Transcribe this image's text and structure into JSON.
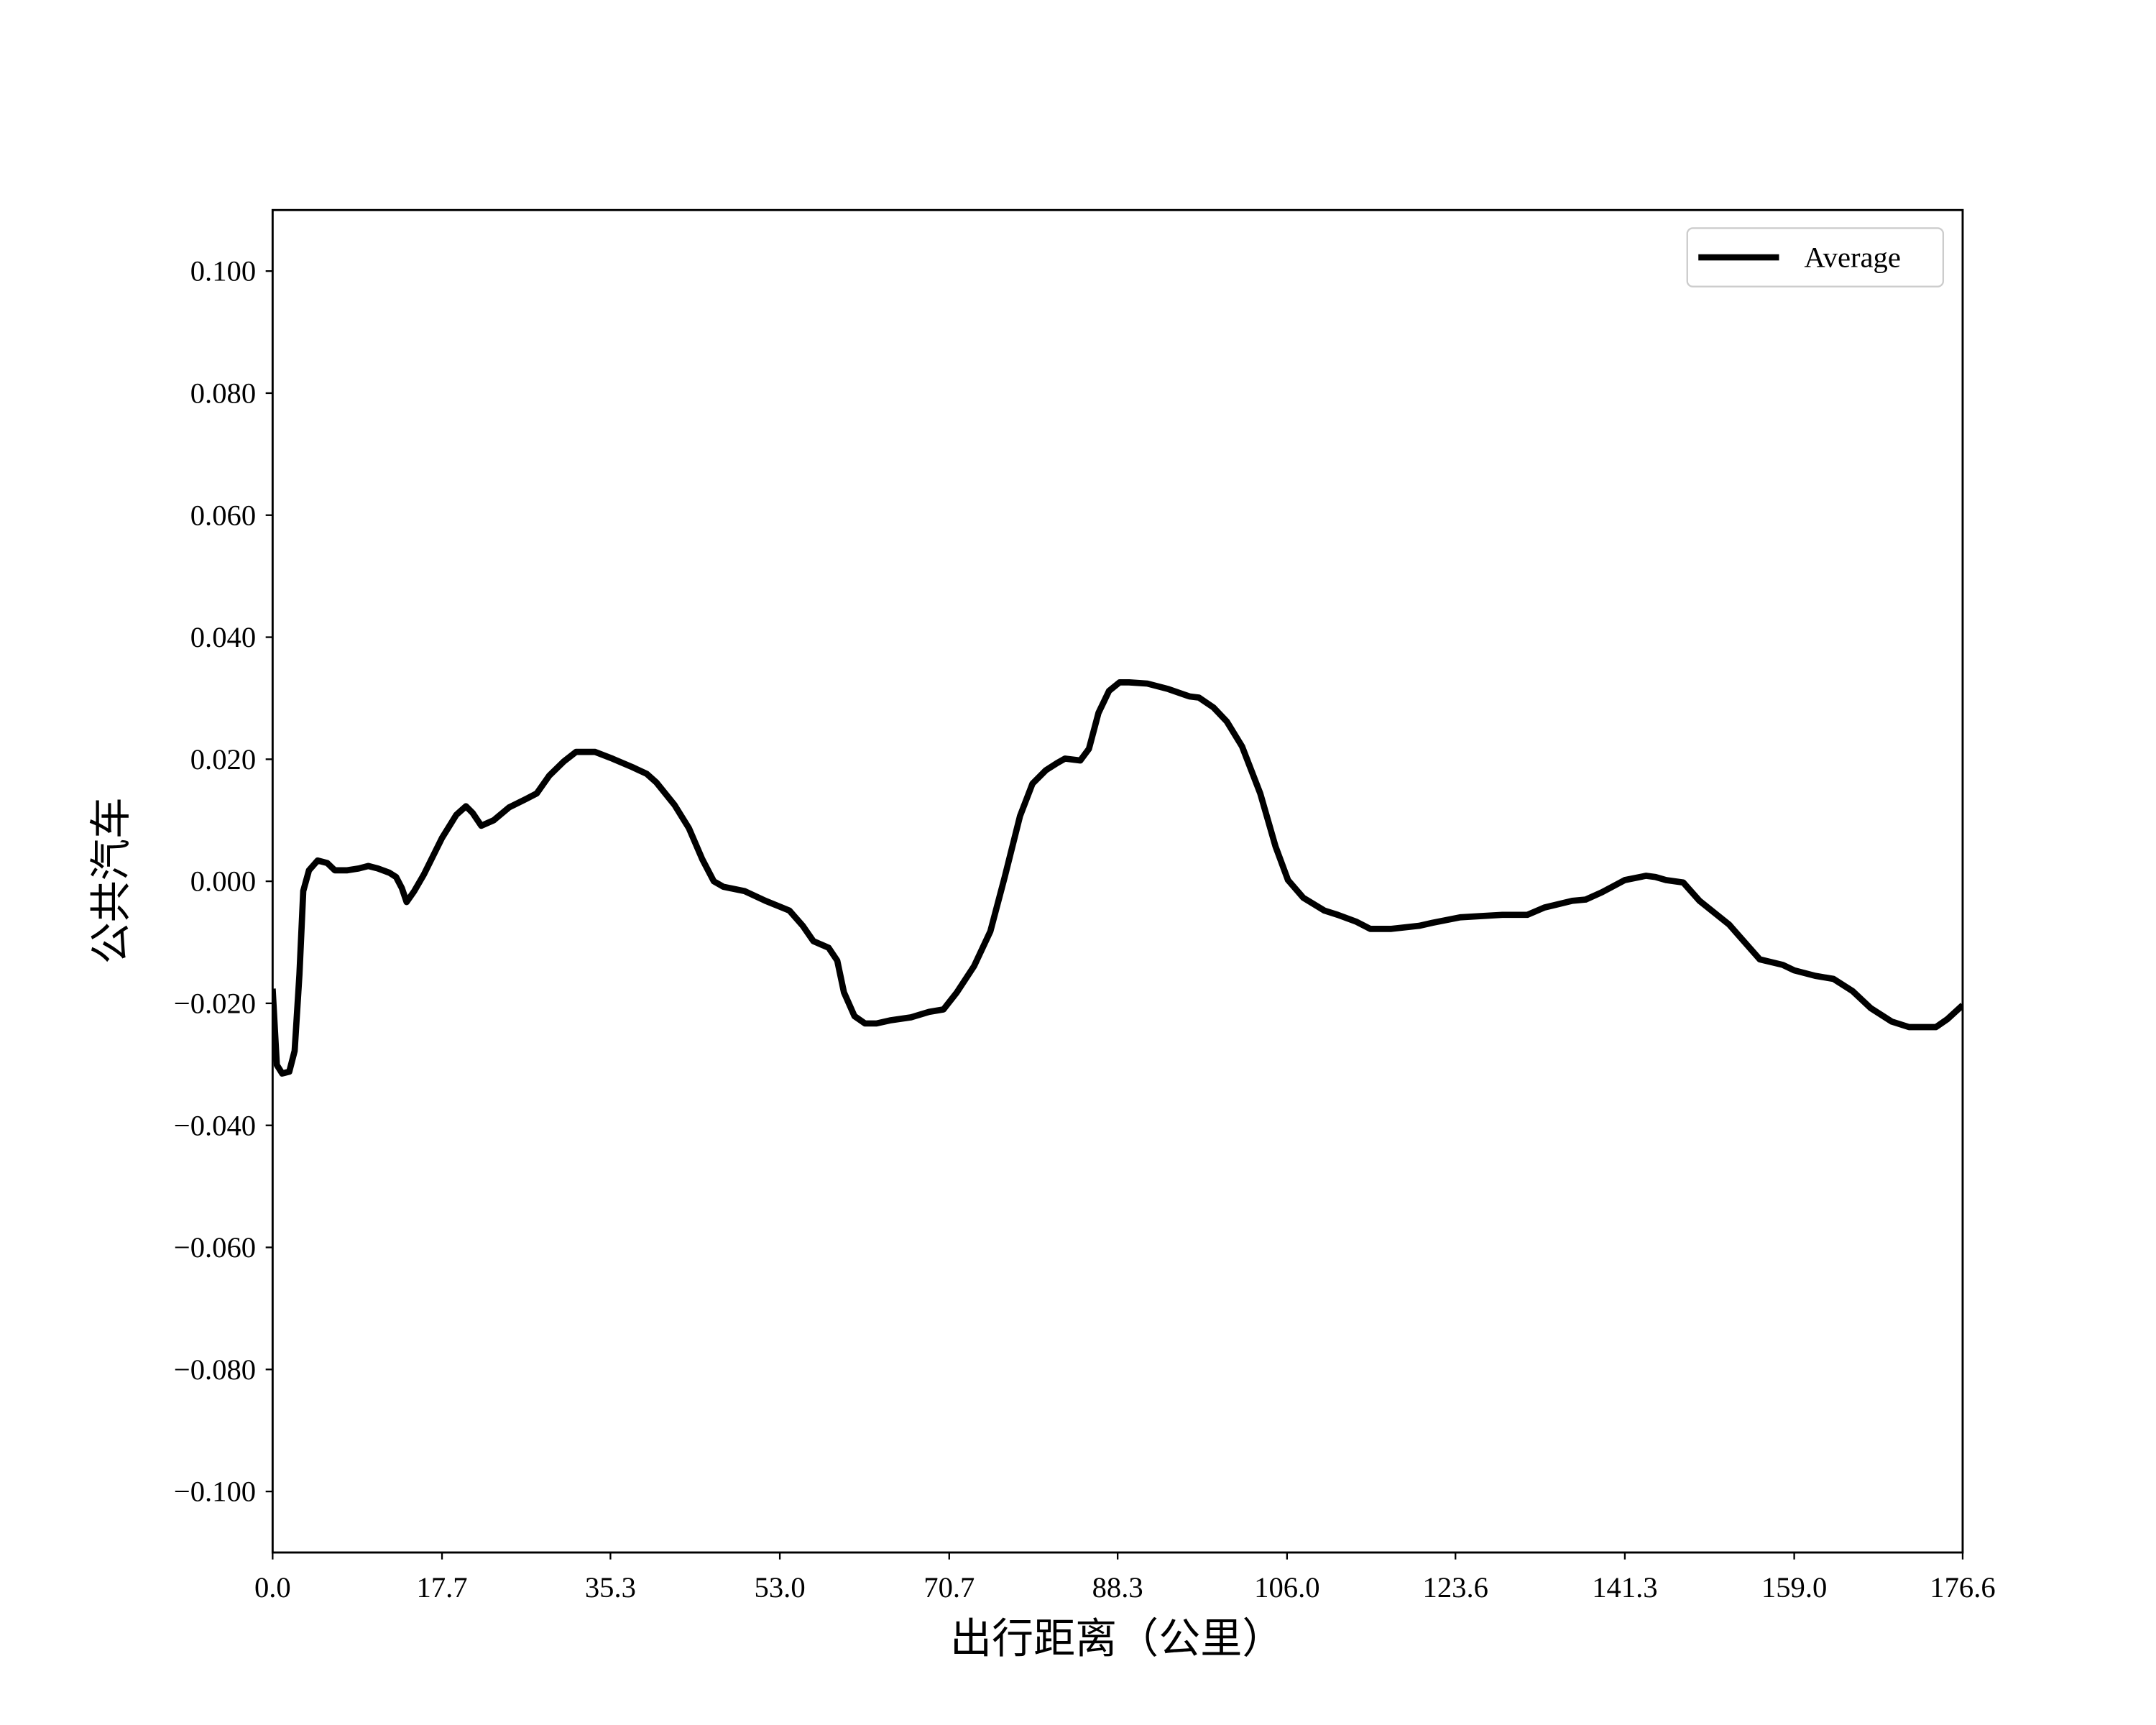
{
  "chart_data": {
    "type": "line",
    "x_label": "出行距离（公里）",
    "y_label": "公共汽车",
    "xlim": [
      0,
      176.6
    ],
    "ylim": [
      -0.11,
      0.11
    ],
    "xticks": [
      {
        "value": 0,
        "label": "0.0"
      },
      17.7,
      35.3,
      {
        "value": 53.0,
        "label": "53.0"
      },
      70.7,
      88.3,
      {
        "value": 106.0,
        "label": "106.0"
      },
      123.6,
      141.3,
      {
        "value": 159.0,
        "label": "159.0"
      },
      176.6
    ],
    "yticks": [
      {
        "value": 0.1,
        "label": "0.100"
      },
      {
        "value": 0.08,
        "label": "0.080"
      },
      {
        "value": 0.06,
        "label": "0.060"
      },
      {
        "value": 0.04,
        "label": "0.040"
      },
      {
        "value": 0.02,
        "label": "0.020"
      },
      {
        "value": 0,
        "label": "0.000"
      },
      {
        "value": -0.02,
        "label": "−0.020"
      },
      {
        "value": -0.04,
        "label": "−0.040"
      },
      {
        "value": -0.06,
        "label": "−0.060"
      },
      {
        "value": -0.08,
        "label": "−0.080"
      },
      {
        "value": -0.1,
        "label": "−0.100"
      }
    ],
    "legend": "upper right",
    "grid": false,
    "series": [
      {
        "name": "Average",
        "color": "#000000",
        "x": [
          0,
          0.44,
          1.0,
          1.74,
          2.3,
          2.8,
          3.2,
          3.8,
          4.7,
          5.7,
          6.5,
          7.8,
          9.0,
          10.0,
          11.0,
          12.2,
          12.9,
          13.5,
          14.0,
          14.8,
          15.8,
          17.7,
          19.2,
          20.2,
          20.9,
          21.8,
          23.1,
          24.7,
          26.5,
          27.6,
          28.9,
          30.4,
          31.7,
          33.7,
          35.5,
          37.6,
          39.1,
          40.1,
          42.0,
          43.5,
          44.9,
          46.1,
          47.1,
          49.3,
          51.5,
          54.0,
          55.4,
          56.5,
          58.1,
          59.0,
          59.7,
          60.8,
          61.9,
          63.1,
          64.5,
          66.7,
          68.6,
          70.1,
          71.5,
          73.3,
          75.0,
          76.5,
          78.1,
          79.4,
          80.8,
          82.0,
          82.8,
          84.4,
          85.3,
          86.3,
          87.4,
          88.5,
          89.5,
          91.4,
          93.6,
          95.8,
          96.8,
          98.3,
          99.7,
          101.3,
          103.2,
          104.8,
          106.1,
          107.7,
          109.9,
          111.3,
          113.2,
          114.7,
          116.9,
          119.8,
          121.2,
          124.1,
          128.5,
          131.1,
          132.9,
          135.8,
          137.2,
          138.9,
          141.3,
          143.5,
          144.5,
          145.6,
          147.4,
          149.1,
          152.2,
          155.4,
          157.8,
          159.0,
          161.2,
          163.1,
          165.1,
          167.0,
          169.2,
          171.0,
          172.1,
          173.8,
          175.0,
          176.6
        ],
        "values": [
          -0.0176,
          -0.0301,
          -0.0315,
          -0.0312,
          -0.0278,
          -0.0153,
          -0.0016,
          0.0018,
          0.0034,
          0.003,
          0.0018,
          0.0018,
          0.0021,
          0.0025,
          0.0021,
          0.0014,
          0.0007,
          -0.0011,
          -0.0034,
          -0.0016,
          0.0011,
          0.0071,
          0.0109,
          0.0123,
          0.0112,
          0.0091,
          0.01,
          0.0121,
          0.0135,
          0.0144,
          0.0173,
          0.0196,
          0.0212,
          0.0212,
          0.0201,
          0.0187,
          0.0176,
          0.0162,
          0.0125,
          0.0087,
          0.0036,
          0.0,
          -0.0009,
          -0.0016,
          -0.0032,
          -0.0048,
          -0.0073,
          -0.0098,
          -0.0109,
          -0.013,
          -0.0182,
          -0.0221,
          -0.0233,
          -0.0233,
          -0.0228,
          -0.0223,
          -0.0214,
          -0.021,
          -0.0182,
          -0.0139,
          -0.0082,
          0.0007,
          0.0107,
          0.016,
          0.0182,
          0.0194,
          0.0201,
          0.0198,
          0.0217,
          0.0276,
          0.0312,
          0.0326,
          0.0326,
          0.0324,
          0.0315,
          0.0303,
          0.0301,
          0.0285,
          0.0262,
          0.0221,
          0.0144,
          0.0057,
          0.0002,
          -0.0027,
          -0.0048,
          -0.0055,
          -0.0066,
          -0.0078,
          -0.0078,
          -0.0073,
          -0.0068,
          -0.0059,
          -0.0055,
          -0.0055,
          -0.0043,
          -0.0032,
          -0.003,
          -0.0018,
          0.0002,
          0.0009,
          0.0007,
          0.0002,
          -0.0002,
          -0.0032,
          -0.0071,
          -0.0128,
          -0.0137,
          -0.0146,
          -0.0155,
          -0.016,
          -0.018,
          -0.0208,
          -0.023,
          -0.0239,
          -0.0239,
          -0.0239,
          -0.0226,
          -0.0203
        ]
      }
    ]
  }
}
